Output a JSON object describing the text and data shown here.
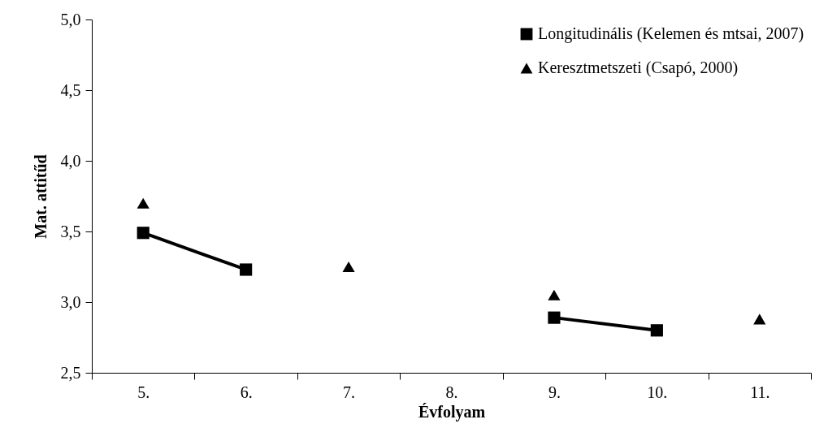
{
  "chart_data": {
    "type": "line",
    "xlabel": "Évfolyam",
    "ylabel": "Mat. attitűd",
    "categories": [
      "5.",
      "6.",
      "7.",
      "8.",
      "9.",
      "10.",
      "11."
    ],
    "series": [
      {
        "name": "Longitudinális (Kelemen és mtsai, 2007)",
        "marker": "square",
        "color": "#000000",
        "values": [
          3.49,
          3.23,
          null,
          null,
          2.89,
          2.8,
          null
        ]
      },
      {
        "name": "Keresztmetszeti (Csapó, 2000)",
        "type": "scatter",
        "marker": "triangle",
        "color": "#000000",
        "values": [
          3.7,
          null,
          3.25,
          null,
          3.05,
          null,
          2.88
        ]
      }
    ],
    "ylim": [
      2.5,
      5.0
    ],
    "yticks": [
      {
        "value": 2.5,
        "label": "2,5"
      },
      {
        "value": 3.0,
        "label": "3,0"
      },
      {
        "value": 3.5,
        "label": "3,5"
      },
      {
        "value": 4.0,
        "label": "4,0"
      },
      {
        "value": 4.5,
        "label": "4,5"
      },
      {
        "value": 5.0,
        "label": "5,0"
      }
    ],
    "grid": false,
    "legend": "top right"
  }
}
